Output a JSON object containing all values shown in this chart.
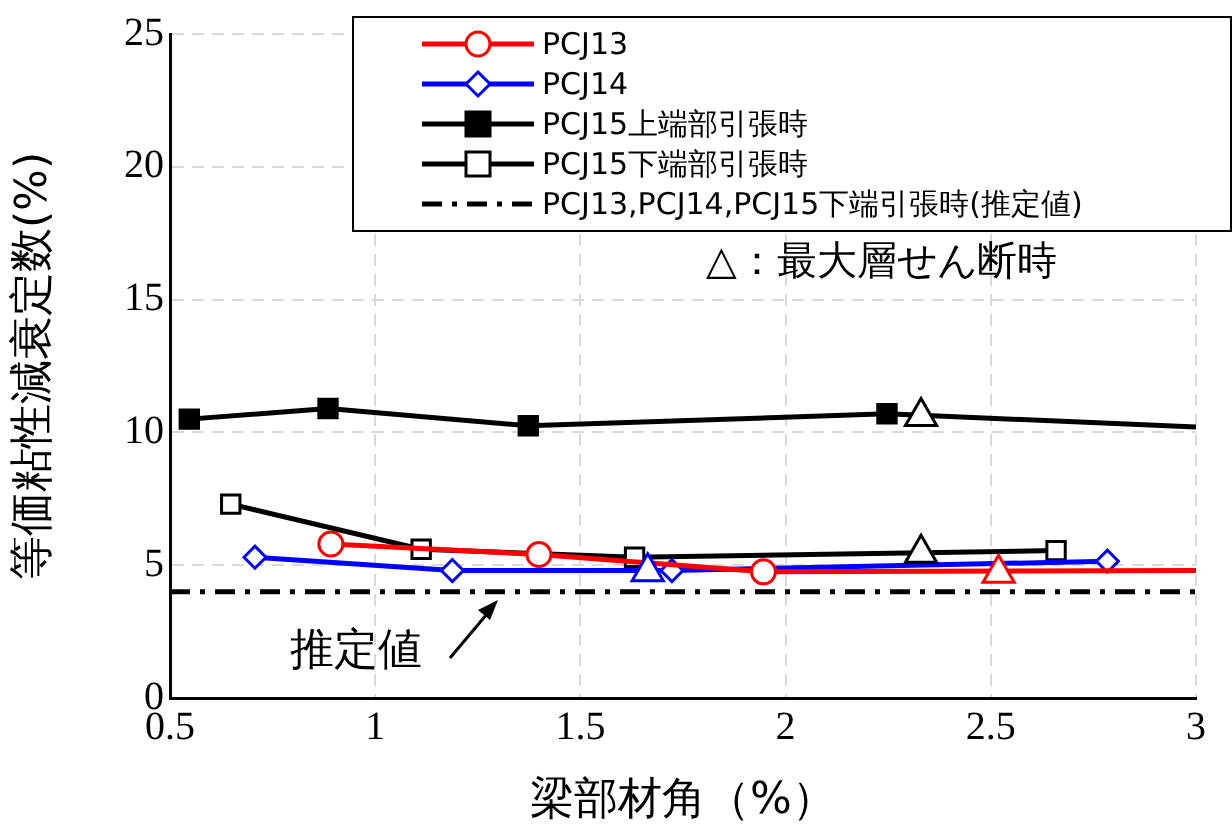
{
  "chart_data": {
    "type": "line",
    "xlabel": "梁部材角（%）",
    "ylabel": "等価粘性減衰定数(%)",
    "xlim": [
      0.5,
      3
    ],
    "xticks": [
      0.5,
      1,
      1.5,
      2,
      2.5,
      3
    ],
    "ylim": [
      0,
      25
    ],
    "yticks": [
      0,
      5,
      10,
      15,
      20,
      25
    ],
    "grid": true,
    "legend": "top right",
    "series": [
      {
        "name": "PCJ13",
        "color": "#ff0000",
        "marker": "circle",
        "x": [
          0.892,
          1.399,
          1.946,
          3.0
        ],
        "values": [
          5.8,
          5.4,
          4.75,
          4.8
        ]
      },
      {
        "name": "PCJ14",
        "color": "#0000ff",
        "marker": "diamond",
        "x": [
          0.707,
          1.188,
          1.723,
          2.784
        ],
        "values": [
          5.3,
          4.8,
          4.8,
          5.15
        ]
      },
      {
        "name": "PCJ15上端部引張時",
        "color": "#000000",
        "marker": "square",
        "x": [
          0.547,
          0.885,
          1.373,
          2.247,
          3.0
        ],
        "values": [
          10.5,
          10.9,
          10.25,
          10.7,
          10.2
        ]
      },
      {
        "name": "PCJ15下端部引張時",
        "color": "#000000",
        "marker": "square",
        "x": [
          0.648,
          1.112,
          1.632,
          2.659
        ],
        "values": [
          7.3,
          5.6,
          5.3,
          5.55
        ]
      },
      {
        "type": "scatter",
        "color": "#ff0000",
        "marker": "triangle",
        "x": [
          2.519
        ],
        "values": [
          4.7
        ]
      },
      {
        "type": "scatter",
        "color": "#0000ff",
        "marker": "triangle",
        "x": [
          1.664
        ],
        "values": [
          4.75
        ]
      },
      {
        "type": "scatter",
        "color": "#000000",
        "marker": "triangle",
        "x": [
          2.33,
          2.33
        ],
        "values": [
          10.6,
          5.45
        ]
      }
    ],
    "ref_lines": [
      {
        "axis": "y",
        "value": 4,
        "label": "PCJ13,PCJ14,PCJ15下端引張時(推定値)",
        "color": "#000000"
      }
    ],
    "annotations": [
      "△：最大層せん断時",
      {
        "text": "推定値",
        "x": 1.3,
        "y": 4
      }
    ]
  }
}
